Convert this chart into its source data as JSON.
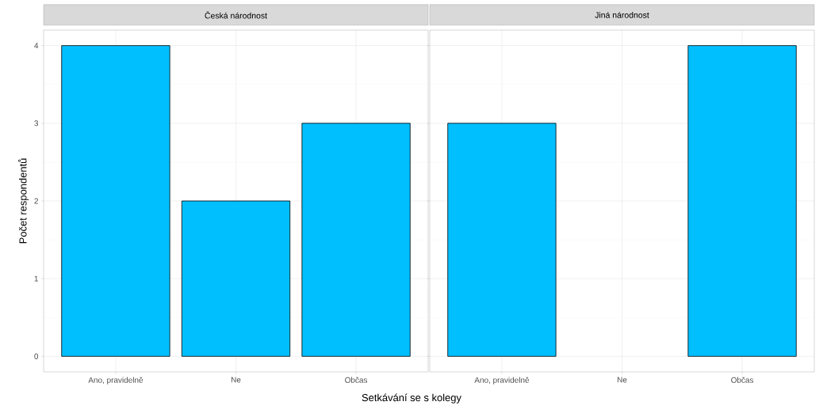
{
  "chart_data": [
    {
      "type": "bar",
      "title": "Česká národnost",
      "xlabel": "Setkávání se s kolegy",
      "ylabel": "Počet respondentů",
      "categories": [
        "Ano, pravidelně",
        "Ne",
        "Občas"
      ],
      "values": [
        4,
        2,
        3
      ],
      "color": "#00bfff",
      "ylim": [
        -0.2,
        4.2
      ],
      "yticks": [
        0,
        1,
        2,
        3,
        4
      ],
      "grid": true
    },
    {
      "type": "bar",
      "title": "Jiná národnost",
      "categories": [
        "Ano, pravidelně",
        "Ne",
        "Občas"
      ],
      "values": [
        3,
        null,
        4
      ],
      "color": "#00bfff",
      "ylim": [
        -0.2,
        4.2
      ],
      "yticks": [
        0,
        1,
        2,
        3,
        4
      ],
      "grid": true,
      "tick_labels": "x"
    }
  ]
}
